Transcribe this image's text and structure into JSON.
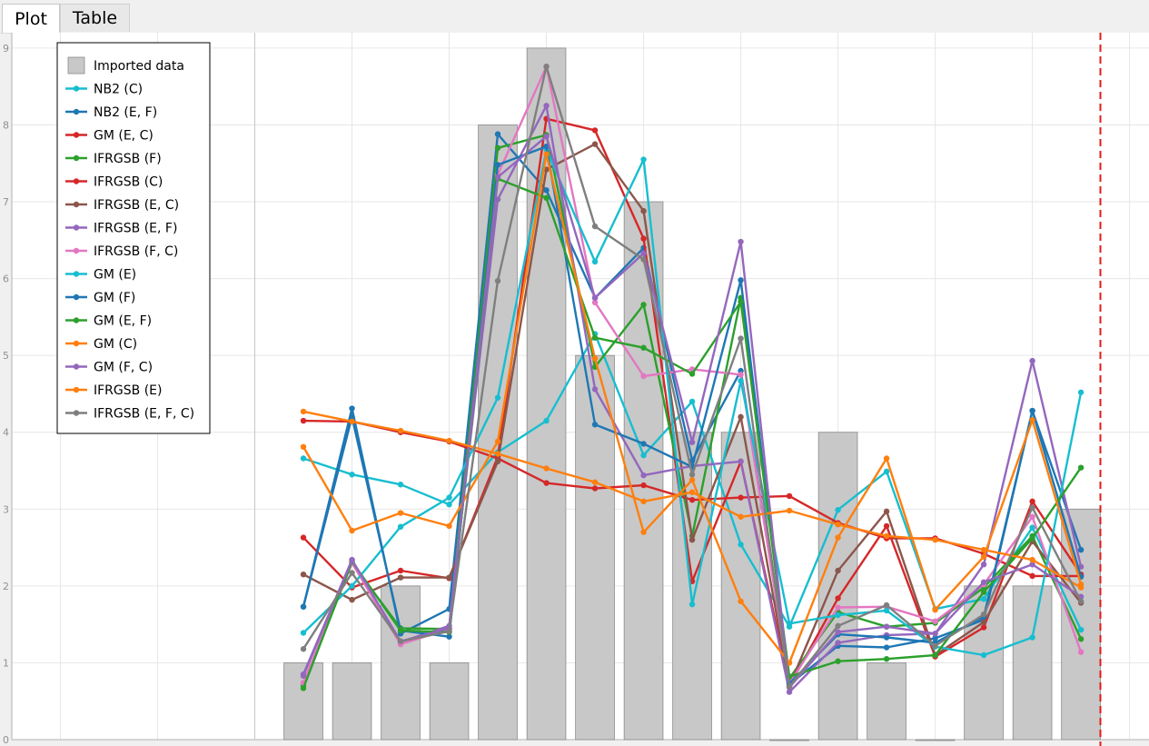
{
  "tabs": [
    {
      "label": "Plot",
      "active": true
    },
    {
      "label": "Table",
      "active": false
    }
  ],
  "chart_data": {
    "type": "bar",
    "title": "",
    "xlabel": "",
    "ylabel": "",
    "ylim": [
      0,
      9.2
    ],
    "yticks": [
      0,
      1,
      2,
      3,
      4,
      5,
      6,
      7,
      8,
      9
    ],
    "grid": true,
    "legend_position": "top-left",
    "x": [
      1,
      2,
      3,
      4,
      5,
      6,
      7,
      8,
      9,
      10,
      11,
      12,
      13,
      14,
      15,
      16,
      17
    ],
    "xlim": [
      -5,
      18.4
    ],
    "marker_x": 17.4,
    "marker_color": "#e31a1c",
    "bars": {
      "name": "Imported data",
      "color": "#c8c8c8",
      "values": [
        1,
        1,
        2,
        1,
        8,
        9,
        5,
        7,
        4,
        4,
        0,
        4,
        1,
        0,
        2,
        2,
        3
      ]
    },
    "series": [
      {
        "name": "NB2 (C)",
        "color": "#17becf",
        "values": [
          3.66,
          3.45,
          3.32,
          3.06,
          3.74,
          4.15,
          5.28,
          3.7,
          4.4,
          2.54,
          1.47,
          2.99,
          3.49,
          1.7,
          1.83,
          2.76,
          1.43
        ]
      },
      {
        "name": "NB2 (E, F)",
        "color": "#1f77b4",
        "values": [
          1.73,
          4.31,
          1.38,
          1.7,
          7.88,
          7.15,
          5.75,
          6.4,
          3.63,
          4.8,
          0.72,
          1.22,
          1.2,
          1.32,
          1.56,
          4.28,
          2.47
        ]
      },
      {
        "name": "GM (E, C)",
        "color": "#d62728",
        "values": [
          2.63,
          1.98,
          2.2,
          2.1,
          3.68,
          8.08,
          7.93,
          6.52,
          2.06,
          3.62,
          0.7,
          1.84,
          2.78,
          1.08,
          1.46,
          3.1,
          2.15
        ]
      },
      {
        "name": "IFRGSB (F)",
        "color": "#2ca02c",
        "values": [
          0.7,
          2.3,
          1.45,
          1.44,
          7.7,
          7.87,
          4.85,
          5.66,
          2.65,
          5.75,
          0.8,
          1.66,
          1.47,
          1.52,
          1.98,
          2.65,
          1.31
        ]
      },
      {
        "name": "IFRGSB (C)",
        "color": "#d62728",
        "values": [
          4.15,
          4.14,
          4.0,
          3.88,
          3.66,
          3.34,
          3.27,
          3.31,
          3.12,
          3.15,
          3.17,
          2.82,
          2.62,
          2.62,
          2.42,
          2.13,
          2.13
        ]
      },
      {
        "name": "IFRGSB (E, C)",
        "color": "#8c564b",
        "values": [
          2.15,
          1.82,
          2.11,
          2.11,
          3.62,
          7.42,
          7.75,
          6.88,
          2.6,
          4.2,
          0.7,
          2.2,
          2.97,
          1.1,
          1.53,
          2.58,
          1.78
        ]
      },
      {
        "name": "IFRGSB (E, F)",
        "color": "#9467bd",
        "values": [
          0.85,
          2.34,
          1.27,
          1.48,
          7.03,
          8.25,
          4.56,
          3.44,
          3.56,
          3.62,
          0.62,
          1.26,
          1.36,
          1.38,
          2.28,
          4.93,
          2.25
        ]
      },
      {
        "name": "IFRGSB (F, C)",
        "color": "#e377c2",
        "values": [
          0.74,
          2.3,
          1.24,
          1.44,
          7.35,
          8.76,
          5.69,
          4.73,
          4.82,
          4.75,
          0.73,
          1.72,
          1.73,
          1.54,
          2.02,
          2.9,
          1.14
        ]
      },
      {
        "name": "GM (E)",
        "color": "#17becf",
        "values": [
          1.39,
          2.0,
          2.77,
          3.15,
          4.45,
          7.68,
          6.22,
          7.55,
          1.76,
          4.67,
          1.51,
          1.62,
          1.68,
          1.21,
          1.1,
          1.33,
          4.52
        ]
      },
      {
        "name": "GM (F)",
        "color": "#1f77b4",
        "values": [
          1.73,
          4.2,
          1.42,
          1.34,
          7.48,
          7.72,
          4.1,
          3.85,
          3.55,
          5.98,
          0.73,
          1.37,
          1.33,
          1.26,
          1.6,
          4.28,
          2.12
        ]
      },
      {
        "name": "GM (E, F)",
        "color": "#2ca02c",
        "values": [
          0.67,
          2.32,
          1.42,
          1.4,
          7.3,
          7.05,
          5.23,
          5.1,
          4.76,
          5.7,
          0.82,
          1.02,
          1.05,
          1.1,
          1.92,
          2.62,
          3.54
        ]
      },
      {
        "name": "GM (C)",
        "color": "#ff7f0e",
        "values": [
          3.81,
          2.72,
          2.95,
          2.78,
          3.88,
          7.62,
          4.96,
          2.7,
          3.38,
          1.8,
          1.0,
          2.63,
          3.66,
          1.69,
          2.38,
          4.16,
          2.02
        ]
      },
      {
        "name": "GM (F, C)",
        "color": "#9467bd",
        "values": [
          0.83,
          2.34,
          1.28,
          1.45,
          7.32,
          7.85,
          5.75,
          6.33,
          3.87,
          6.48,
          0.68,
          1.4,
          1.47,
          1.38,
          2.05,
          2.28,
          1.86
        ]
      },
      {
        "name": "IFRGSB (E)",
        "color": "#ff7f0e",
        "values": [
          4.27,
          4.14,
          4.02,
          3.89,
          3.72,
          3.53,
          3.35,
          3.1,
          3.22,
          2.9,
          2.98,
          2.8,
          2.65,
          2.6,
          2.47,
          2.34,
          1.98
        ]
      },
      {
        "name": "IFRGSB (E, F, C)",
        "color": "#7f7f7f",
        "values": [
          1.18,
          2.17,
          1.28,
          1.41,
          5.97,
          8.76,
          6.68,
          6.25,
          3.45,
          5.22,
          0.69,
          1.48,
          1.75,
          1.22,
          1.63,
          3.02,
          1.8
        ]
      }
    ]
  }
}
